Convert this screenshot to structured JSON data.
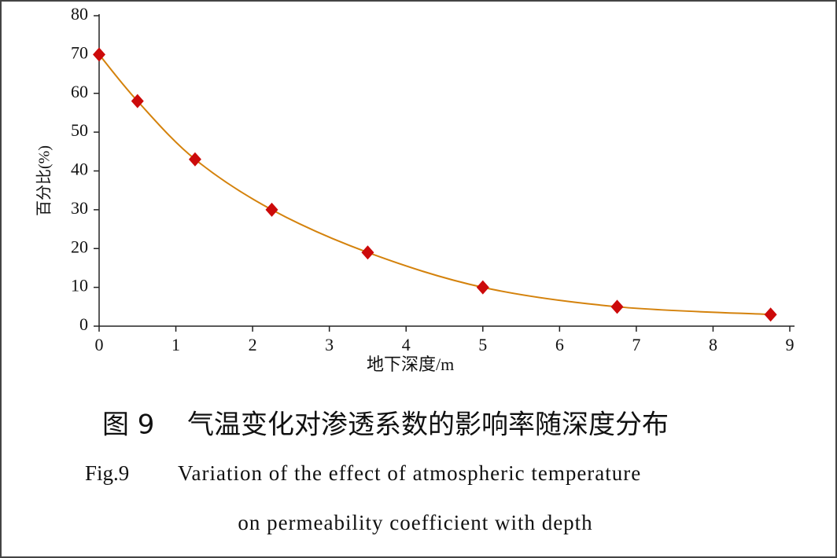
{
  "chart_data": {
    "type": "line",
    "x_label": "地下深度/m",
    "y_label": "百分比(%)",
    "series": [
      {
        "name": "影响率",
        "color": "#d4820c",
        "marker_color": "#cc0a0a",
        "x": [
          0,
          0.5,
          1.25,
          2.25,
          3.5,
          5,
          6.75,
          8.75
        ],
        "values": [
          70,
          58,
          43,
          30,
          19,
          10,
          5,
          3
        ]
      }
    ],
    "xlim": [
      0,
      9
    ],
    "xticks": [
      0,
      1,
      2,
      3,
      4,
      5,
      6,
      7,
      8,
      9
    ],
    "ylim": [
      0,
      80
    ],
    "yticks": [
      0,
      10,
      20,
      30,
      40,
      50,
      60,
      70,
      80
    ],
    "grid": false,
    "smooth": true
  },
  "caption": {
    "number_zh": "图 9",
    "title_zh": "气温变化对渗透系数的影响率随深度分布",
    "number_en": "Fig.9",
    "title_en_line1": "Variation of the effect of atmospheric temperature",
    "title_en_line2": "on permeability coefficient with depth"
  }
}
